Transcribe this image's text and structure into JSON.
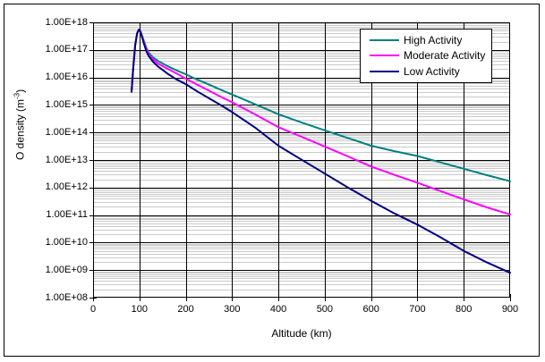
{
  "frame": {
    "background": "#ffffff",
    "border_color": "#000000"
  },
  "chart_data": {
    "type": "line",
    "title": "",
    "xlabel": "Altitude (km)",
    "ylabel": {
      "prefix": "O density (m",
      "sup": "-3",
      "suffix": ")"
    },
    "xlim": [
      0,
      900
    ],
    "x_tick_step": 100,
    "x_tick_labels": [
      "0",
      "100",
      "200",
      "300",
      "400",
      "500",
      "600",
      "700",
      "800",
      "900"
    ],
    "y_scale": "log",
    "y_log_exponent_range": [
      8,
      18
    ],
    "y_tick_labels": [
      "1.00E+18",
      "1.00E+17",
      "1.00E+16",
      "1.00E+15",
      "1.00E+14",
      "1.00E+13",
      "1.00E+12",
      "1.00E+11",
      "1.00E+10",
      "1.00E+09",
      "1.00E+08"
    ],
    "grid": {
      "major_color": "#000000",
      "minor_color": "#c9c9c9",
      "minor_log_lines": true,
      "vertical_major_lines": true
    },
    "legend": {
      "position": "top-right",
      "border_color": "#000000",
      "background": "#ffffff"
    },
    "x": [
      83,
      87,
      91,
      95,
      99,
      102,
      106,
      110,
      115,
      120,
      130,
      140,
      160,
      180,
      200,
      225,
      250,
      275,
      300,
      350,
      400,
      450,
      500,
      550,
      600,
      650,
      700,
      750,
      800,
      850,
      900
    ],
    "series": [
      {
        "name": "High Activity",
        "color": "#008080",
        "y": [
          3000000000000000.0,
          2.5e+16,
          1.5e+17,
          4e+17,
          5.5e+17,
          5e+17,
          3.2e+17,
          2e+17,
          1.2e+17,
          8e+16,
          5.2e+16,
          4e+16,
          2.6e+16,
          1.8e+16,
          1.3e+16,
          8300000000000000.0,
          5500000000000000.0,
          3600000000000000.0,
          2400000000000000.0,
          1050000000000000.0,
          460000000000000.0,
          230000000000000.0,
          120000000000000.0,
          63000000000000.0,
          33000000000000.0,
          21000000000000.0,
          14000000000000.0,
          8200000000000.0,
          4800000000000.0,
          2800000000000.0,
          1700000000000.0
        ]
      },
      {
        "name": "Moderate Activity",
        "color": "#ff00ff",
        "y": [
          3000000000000000.0,
          2.5e+16,
          1.5e+17,
          4e+17,
          5.5e+17,
          4.8e+17,
          3e+17,
          1.8e+17,
          1.05e+17,
          7e+16,
          4.4e+16,
          3.2e+16,
          2.1e+16,
          1.4e+16,
          9000000000000000.0,
          5400000000000000.0,
          3300000000000000.0,
          2000000000000000.0,
          1250000000000000.0,
          450000000000000.0,
          155000000000000.0,
          70000000000000.0,
          31000000000000.0,
          13500000000000.0,
          5800000000000.0,
          2900000000000.0,
          1500000000000.0,
          740000000000.0,
          370000000000.0,
          190000000000.0,
          105000000000.0
        ]
      },
      {
        "name": "Low Activity",
        "color": "#000080",
        "y": [
          3000000000000000.0,
          2.5e+16,
          1.5e+17,
          4e+17,
          5.5e+17,
          4.6e+17,
          2.8e+17,
          1.6e+17,
          9e+16,
          6e+16,
          3.6e+16,
          2.5e+16,
          1.4e+16,
          8500000000000000.0,
          5700000000000000.0,
          3100000000000000.0,
          1750000000000000.0,
          1000000000000000.0,
          550000000000000.0,
          150000000000000.0,
          33000000000000.0,
          10200000000000.0,
          3200000000000.0,
          1000000000000.0,
          330000000000.0,
          115000000000.0,
          45000000000.0,
          15500000000.0,
          5000000000.0,
          1900000000.0,
          800000000.0
        ]
      }
    ]
  }
}
